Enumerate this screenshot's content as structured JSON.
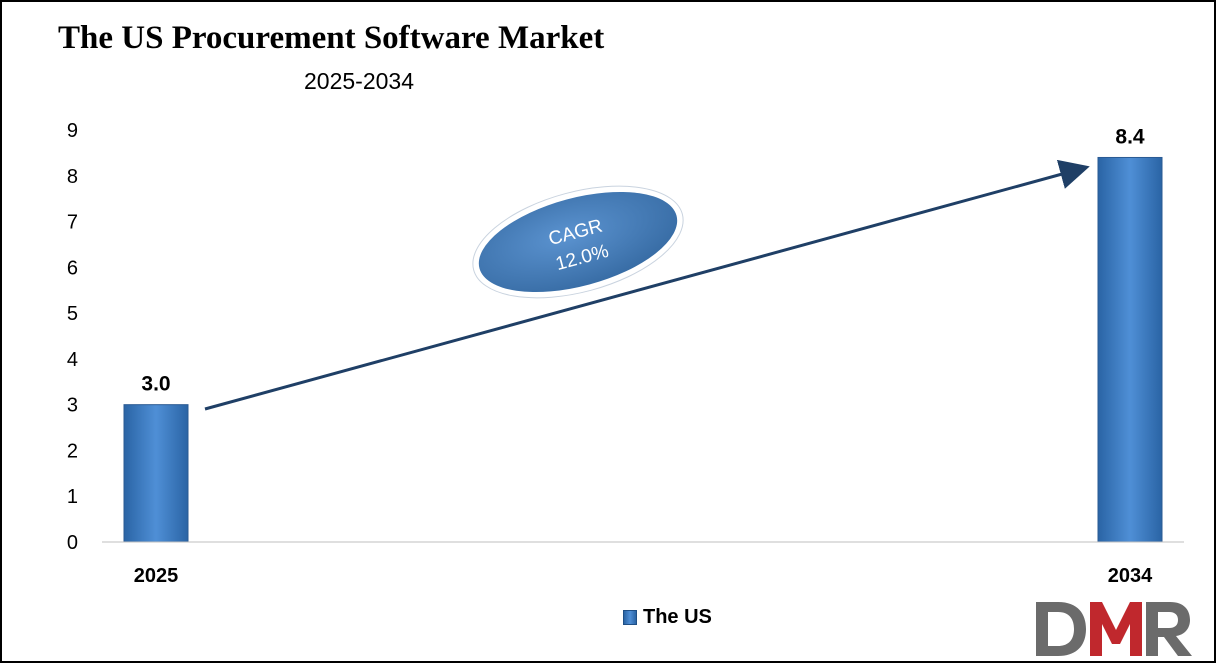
{
  "header": {
    "title": "The US Procurement Software Market",
    "subtitle": "2025-2034"
  },
  "chart_data": {
    "type": "bar",
    "title": "The US Procurement Software Market",
    "subtitle": "2025-2034",
    "categories": [
      "2025",
      "2034"
    ],
    "series": [
      {
        "name": "The US",
        "values": [
          3.0,
          8.4
        ],
        "data_labels": [
          "3.0",
          "8.4"
        ]
      }
    ],
    "ylim": [
      0,
      9
    ],
    "yticks": [
      "0",
      "1",
      "2",
      "3",
      "4",
      "5",
      "6",
      "7",
      "8",
      "9"
    ],
    "grid": false,
    "legend": "bottom-center",
    "annotation": {
      "line1": "CAGR",
      "line2": "12.0%"
    }
  },
  "colors": {
    "bar": "#2f6db3",
    "arrow": "#1f3f66",
    "ellipse": "#3f78b8"
  },
  "legend": {
    "label": "The US"
  },
  "logo": {
    "text": "DMR",
    "colors": [
      "#6b6b6b",
      "#c0282d"
    ]
  }
}
